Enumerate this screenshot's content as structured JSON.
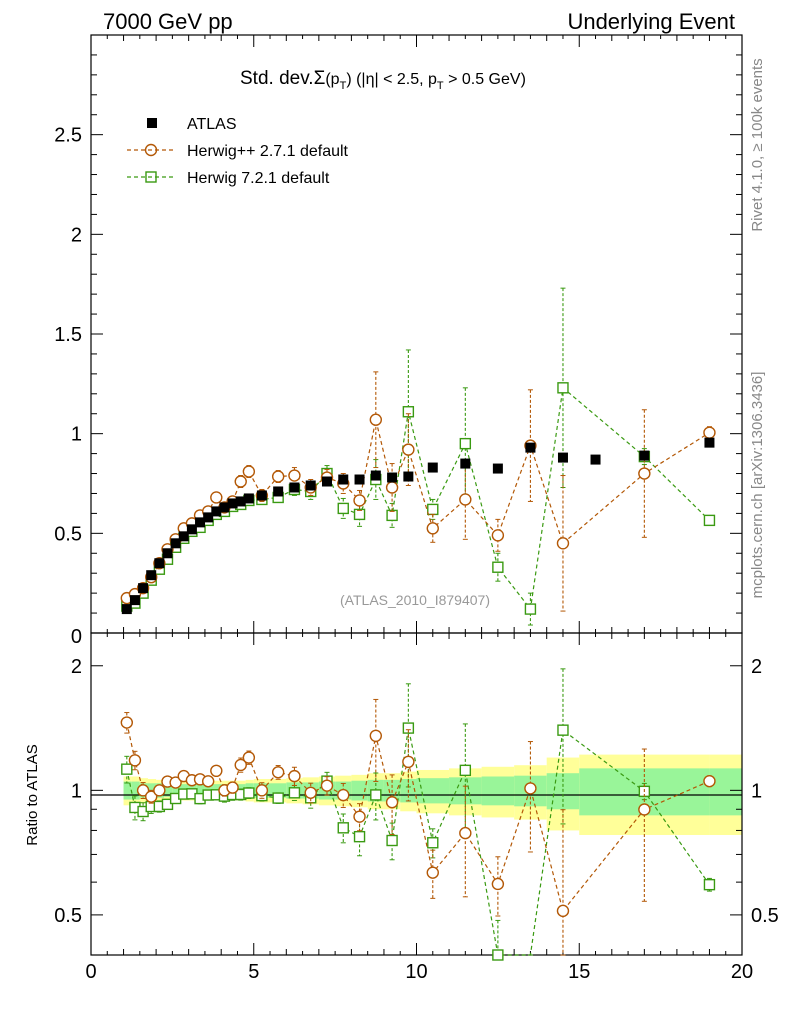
{
  "header": {
    "left": "7000 GeV pp",
    "right": "Underlying Event"
  },
  "side_labels": {
    "top": "Rivet 4.1.0, ≥ 100k events",
    "bottom": "mcplots.cern.ch [arXiv:1306.3436]"
  },
  "title": {
    "prefix": "Std. dev.",
    "sigma": "Σ",
    "body": "(p",
    "sub1": "T",
    "rest": ") (|η| < 2.5, p",
    "sub2": "T",
    "end": " > 0.5 GeV)"
  },
  "legend": {
    "atlas": "ATLAS",
    "herwigpp": "Herwig++ 2.7.1 default",
    "herwig7": "Herwig 7.2.1 default"
  },
  "watermark": "(ATLAS_2010_I879407)",
  "ratio_ylabel": "Ratio to ATLAS",
  "colors": {
    "atlas": "#000000",
    "herwigpp": "#b35806",
    "herwig7": "#3a9a12",
    "band_outer": "#ffff99",
    "band_inner": "#99f599"
  },
  "chart_data": {
    "type": "scatter",
    "xlim": [
      0,
      20
    ],
    "x_ticks": [
      "0",
      "5",
      "10",
      "15",
      "20"
    ],
    "main": {
      "ylim": [
        0,
        3.0
      ],
      "y_ticks": [
        "0.5",
        "1",
        "1.5",
        "2",
        "2.5"
      ],
      "y_tick_values": [
        0.5,
        1,
        1.5,
        2,
        2.5
      ]
    },
    "ratio": {
      "ylim": [
        0.4,
        2.4
      ],
      "y_ticks": [
        "0.5",
        "1",
        "2"
      ],
      "y_tick_values": [
        0.5,
        1,
        2
      ]
    },
    "band": {
      "x_edges": [
        1.0,
        1.25,
        1.5,
        1.75,
        2.0,
        2.25,
        2.5,
        2.75,
        3.0,
        3.25,
        3.5,
        3.75,
        4.0,
        4.25,
        4.5,
        4.75,
        5.0,
        5.5,
        6.0,
        6.5,
        7.0,
        7.5,
        8.0,
        8.5,
        9.0,
        9.5,
        10.0,
        11.0,
        12.0,
        13.0,
        14.0,
        15.0,
        19.0,
        20.0
      ],
      "inner": [
        0.05,
        0.05,
        0.04,
        0.04,
        0.04,
        0.035,
        0.035,
        0.035,
        0.035,
        0.035,
        0.035,
        0.035,
        0.035,
        0.035,
        0.035,
        0.04,
        0.04,
        0.04,
        0.045,
        0.045,
        0.05,
        0.05,
        0.055,
        0.06,
        0.06,
        0.065,
        0.07,
        0.075,
        0.08,
        0.085,
        0.1,
        0.13,
        0.13
      ],
      "outer": [
        0.08,
        0.08,
        0.07,
        0.065,
        0.06,
        0.055,
        0.055,
        0.055,
        0.055,
        0.055,
        0.055,
        0.055,
        0.055,
        0.055,
        0.055,
        0.06,
        0.065,
        0.065,
        0.07,
        0.075,
        0.08,
        0.085,
        0.09,
        0.1,
        0.1,
        0.11,
        0.12,
        0.13,
        0.14,
        0.15,
        0.2,
        0.22,
        0.22
      ]
    },
    "series": [
      {
        "name": "ATLAS",
        "x": [
          1.1,
          1.35,
          1.6,
          1.85,
          2.1,
          2.35,
          2.6,
          2.85,
          3.1,
          3.35,
          3.6,
          3.85,
          4.1,
          4.35,
          4.6,
          4.85,
          5.25,
          5.75,
          6.25,
          6.75,
          7.25,
          7.75,
          8.25,
          8.75,
          9.25,
          9.75,
          10.5,
          11.5,
          12.5,
          13.5,
          14.5,
          15.5,
          17.0,
          19.0
        ],
        "y": [
          0.12,
          0.165,
          0.225,
          0.29,
          0.35,
          0.4,
          0.45,
          0.485,
          0.52,
          0.555,
          0.58,
          0.61,
          0.63,
          0.65,
          0.66,
          0.675,
          0.69,
          0.71,
          0.73,
          0.74,
          0.76,
          0.77,
          0.77,
          0.79,
          0.78,
          0.785,
          0.83,
          0.85,
          0.825,
          0.93,
          0.88,
          0.87,
          0.89,
          0.955
        ]
      },
      {
        "name": "Herwig++ 2.7.1 default",
        "x": [
          1.1,
          1.35,
          1.6,
          1.85,
          2.1,
          2.35,
          2.6,
          2.85,
          3.1,
          3.35,
          3.6,
          3.85,
          4.1,
          4.35,
          4.6,
          4.85,
          5.25,
          5.75,
          6.25,
          6.75,
          7.25,
          7.75,
          8.25,
          8.75,
          9.25,
          9.75,
          10.5,
          11.5,
          12.5,
          13.5,
          14.5,
          17.0,
          19.0
        ],
        "y": [
          0.175,
          0.195,
          0.225,
          0.28,
          0.35,
          0.42,
          0.47,
          0.525,
          0.55,
          0.59,
          0.61,
          0.68,
          0.63,
          0.66,
          0.76,
          0.81,
          0.69,
          0.785,
          0.79,
          0.73,
          0.78,
          0.75,
          0.665,
          1.07,
          0.73,
          0.92,
          0.525,
          0.67,
          0.49,
          0.94,
          0.45,
          0.8,
          1.005
        ],
        "err": [
          0.01,
          0.01,
          0.01,
          0.01,
          0.01,
          0.01,
          0.01,
          0.01,
          0.01,
          0.015,
          0.015,
          0.015,
          0.02,
          0.02,
          0.03,
          0.03,
          0.03,
          0.03,
          0.04,
          0.04,
          0.04,
          0.05,
          0.05,
          0.24,
          0.12,
          0.18,
          0.07,
          0.2,
          0.08,
          0.28,
          0.34,
          0.32,
          0.03
        ]
      },
      {
        "name": "Herwig 7.2.1 default",
        "x": [
          1.1,
          1.35,
          1.6,
          1.85,
          2.1,
          2.35,
          2.6,
          2.85,
          3.1,
          3.35,
          3.6,
          3.85,
          4.1,
          4.35,
          4.6,
          4.85,
          5.25,
          5.75,
          6.25,
          6.75,
          7.25,
          7.75,
          8.25,
          8.75,
          9.25,
          9.75,
          10.5,
          11.5,
          12.5,
          13.5,
          14.5,
          17.0,
          19.0
        ],
        "y": [
          0.135,
          0.15,
          0.2,
          0.265,
          0.32,
          0.37,
          0.43,
          0.475,
          0.51,
          0.53,
          0.565,
          0.595,
          0.61,
          0.635,
          0.645,
          0.665,
          0.67,
          0.68,
          0.72,
          0.71,
          0.8,
          0.625,
          0.595,
          0.77,
          0.59,
          1.11,
          0.62,
          0.95,
          0.33,
          0.12,
          1.23,
          0.885,
          0.565
        ],
        "err": [
          0.01,
          0.01,
          0.01,
          0.01,
          0.01,
          0.01,
          0.01,
          0.01,
          0.01,
          0.015,
          0.015,
          0.015,
          0.02,
          0.02,
          0.02,
          0.02,
          0.02,
          0.02,
          0.03,
          0.04,
          0.04,
          0.05,
          0.06,
          0.1,
          0.06,
          0.31,
          0.05,
          0.28,
          0.07,
          0.08,
          0.5,
          0.04,
          0.02
        ]
      }
    ]
  }
}
